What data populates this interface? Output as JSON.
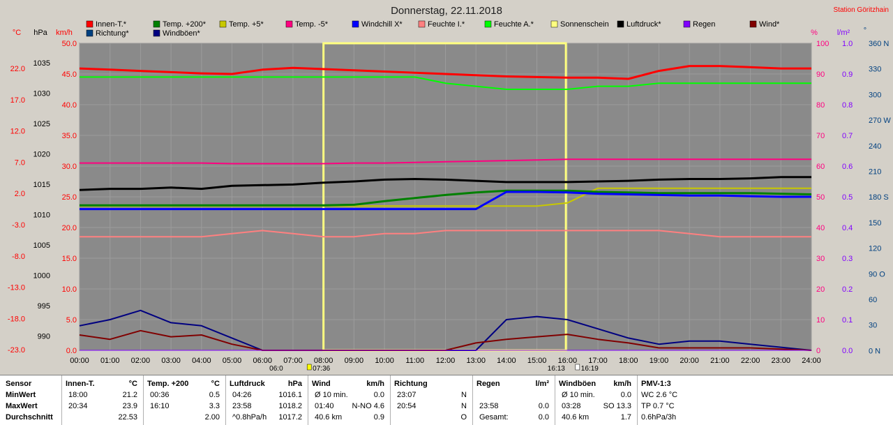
{
  "title": "Donnerstag, 22.11.2018",
  "station": "Station Göritzhain",
  "legend": [
    {
      "name": "Innen-T.*",
      "color": "#ff0000"
    },
    {
      "name": "Temp. +200*",
      "color": "#008000"
    },
    {
      "name": "Temp. +5*",
      "color": "#c8c800"
    },
    {
      "name": "Temp. -5*",
      "color": "#ff0080"
    },
    {
      "name": "Windchill X*",
      "color": "#0000ff"
    },
    {
      "name": "Feuchte I.*",
      "color": "#ff8080"
    },
    {
      "name": "Feuchte A.*",
      "color": "#00ff00"
    },
    {
      "name": "Sonnenschein",
      "color": "#ffff80"
    },
    {
      "name": "Luftdruck*",
      "color": "#000000"
    },
    {
      "name": "Regen",
      "color": "#8000ff"
    },
    {
      "name": "Wind*",
      "color": "#800000"
    },
    {
      "name": "Richtung*",
      "color": "#004080"
    },
    {
      "name": "Windböen*",
      "color": "#000080"
    }
  ],
  "axes": {
    "celsius": {
      "unit": "°C",
      "color": "#ff0000",
      "ticks": [
        "22.0",
        "17.0",
        "12.0",
        "7.0",
        "2.0",
        "-3.0",
        "-8.0",
        "-13.0",
        "-18.0",
        "-23.0"
      ]
    },
    "hpa": {
      "unit": "hPa",
      "color": "#000000",
      "ticks": [
        "1035",
        "1030",
        "1025",
        "1020",
        "1015",
        "1010",
        "1005",
        "1000",
        "995",
        "990"
      ]
    },
    "kmh": {
      "unit": "km/h",
      "color": "#ff0000",
      "ticks": [
        "50.0",
        "45.0",
        "40.0",
        "35.0",
        "30.0",
        "25.0",
        "20.0",
        "15.0",
        "10.0",
        "5.0",
        "0.0"
      ]
    },
    "percent": {
      "unit": "%",
      "color": "#ff0080",
      "ticks": [
        "100",
        "90",
        "80",
        "70",
        "60",
        "50",
        "40",
        "30",
        "20",
        "10",
        "0"
      ]
    },
    "rain": {
      "unit": "l/m²",
      "color": "#8000ff",
      "ticks": [
        "1.0",
        "0.9",
        "0.8",
        "0.7",
        "0.6",
        "0.5",
        "0.4",
        "0.3",
        "0.2",
        "0.1",
        "0.0"
      ]
    },
    "direction": {
      "unit": "°",
      "color": "#004080",
      "ticks": [
        "360 N",
        "330",
        "300",
        "270 W",
        "240",
        "210",
        "180 S",
        "150",
        "120",
        "90 O",
        "60",
        "30",
        "0 N"
      ]
    },
    "x": {
      "ticks": [
        "00:00",
        "01:00",
        "02:00",
        "03:00",
        "04:00",
        "05:00",
        "06:00",
        "07:00",
        "08:00",
        "09:00",
        "10:00",
        "11:00",
        "12:00",
        "13:00",
        "14:00",
        "15:00",
        "16:00",
        "17:00",
        "18:00",
        "19:00",
        "20:00",
        "21:00",
        "22:00",
        "23:00",
        "24:00"
      ]
    }
  },
  "sun": {
    "rise": "07:36",
    "rise_label": "06:0",
    "set": "16:13",
    "set_label": "16:19"
  },
  "chart_data": {
    "type": "line",
    "title": "Donnerstag, 22.11.2018",
    "x_hours": [
      0,
      1,
      2,
      3,
      4,
      5,
      6,
      7,
      8,
      9,
      10,
      11,
      12,
      13,
      14,
      15,
      16,
      17,
      18,
      19,
      20,
      21,
      22,
      23,
      24
    ],
    "series": [
      {
        "name": "Innen-T.*",
        "axis": "celsius",
        "values": [
          22.9,
          22.7,
          22.5,
          22.3,
          22.1,
          22.0,
          22.7,
          23.0,
          22.8,
          22.6,
          22.4,
          22.2,
          22.0,
          21.8,
          21.6,
          21.5,
          21.4,
          21.4,
          21.2,
          22.5,
          23.3,
          23.3,
          23.1,
          22.9,
          22.9
        ]
      },
      {
        "name": "Feuchte A.*",
        "axis": "percent",
        "values": [
          89,
          89,
          89,
          89,
          89,
          89,
          89,
          89,
          89,
          89,
          89,
          89,
          87,
          86,
          85,
          85,
          85,
          86,
          86,
          87,
          87,
          87,
          87,
          87,
          87
        ]
      },
      {
        "name": "Temp. -5*",
        "axis": "celsius",
        "values": [
          7.5,
          7.5,
          7.5,
          7.5,
          7.5,
          7.4,
          7.4,
          7.4,
          7.4,
          7.5,
          7.5,
          7.6,
          7.7,
          7.8,
          7.9,
          8.0,
          8.1,
          8.1,
          8.1,
          8.1,
          8.1,
          8.1,
          8.1,
          8.1,
          8.1
        ]
      },
      {
        "name": "Luftdruck*",
        "axis": "hpa",
        "values": [
          1016.1,
          1016.3,
          1016.3,
          1016.5,
          1016.3,
          1016.8,
          1016.9,
          1017.0,
          1017.3,
          1017.5,
          1017.8,
          1017.9,
          1017.8,
          1017.6,
          1017.4,
          1017.4,
          1017.4,
          1017.5,
          1017.6,
          1017.8,
          1017.9,
          1017.9,
          1018.0,
          1018.2,
          1018.2
        ]
      },
      {
        "name": "Temp. +5*",
        "axis": "celsius",
        "values": [
          0.5,
          0.5,
          0.5,
          0.5,
          0.5,
          0.5,
          0.5,
          0.5,
          0.5,
          0.5,
          0.5,
          0.5,
          0.5,
          0.5,
          0.5,
          0.5,
          1.0,
          3.4,
          3.4,
          3.4,
          3.4,
          3.4,
          3.4,
          3.4,
          3.4
        ]
      },
      {
        "name": "Temp. +200*",
        "axis": "celsius",
        "values": [
          0.6,
          0.6,
          0.6,
          0.6,
          0.6,
          0.6,
          0.6,
          0.6,
          0.6,
          0.7,
          1.3,
          1.8,
          2.3,
          2.7,
          3.0,
          3.0,
          3.0,
          2.8,
          2.7,
          2.6,
          2.6,
          2.6,
          2.6,
          2.5,
          2.4
        ]
      },
      {
        "name": "Windchill X*",
        "axis": "celsius",
        "values": [
          0.0,
          0.0,
          0.0,
          0.0,
          0.0,
          0.0,
          0.0,
          0.0,
          0.0,
          0.0,
          0.0,
          0.0,
          0.0,
          0.0,
          2.8,
          2.8,
          2.7,
          2.5,
          2.4,
          2.3,
          2.2,
          2.2,
          2.1,
          2.0,
          2.0
        ]
      },
      {
        "name": "Feuchte I.*",
        "axis": "percent",
        "values": [
          37,
          37,
          37,
          37,
          37,
          38,
          39,
          38,
          37,
          37,
          38,
          38,
          39,
          39,
          39,
          39,
          39,
          39,
          39,
          39,
          38,
          37,
          37,
          37,
          37
        ]
      },
      {
        "name": "Windböen*",
        "axis": "kmh",
        "values": [
          4.0,
          5.0,
          6.5,
          4.5,
          4.0,
          2.0,
          0,
          0,
          0,
          0,
          0,
          0,
          0,
          0,
          5.0,
          5.5,
          5.0,
          3.5,
          2.0,
          1.0,
          1.5,
          1.5,
          1.0,
          0.5,
          0
        ]
      },
      {
        "name": "Wind*",
        "axis": "kmh",
        "values": [
          2.5,
          1.8,
          3.2,
          2.2,
          2.5,
          1.0,
          0,
          0,
          0,
          0,
          0,
          0,
          0,
          1.2,
          1.8,
          2.2,
          2.6,
          1.8,
          1.2,
          0.4,
          0.4,
          0.4,
          0.4,
          0.2,
          0
        ]
      },
      {
        "name": "Regen",
        "axis": "rain",
        "values": [
          0,
          0,
          0,
          0,
          0,
          0,
          0,
          0,
          0,
          0,
          0,
          0,
          0,
          0,
          0,
          0,
          0,
          0,
          0,
          0,
          0,
          0,
          0,
          0,
          0
        ]
      }
    ]
  },
  "stats": {
    "sensor": {
      "header": "Sensor",
      "rows": [
        "MinWert",
        "MaxWert",
        "Durchschnitt"
      ]
    },
    "innen": {
      "header": "Innen-T.",
      "unit": "°C",
      "rows": [
        [
          "18:00",
          "21.2"
        ],
        [
          "20:34",
          "23.9"
        ],
        [
          "",
          "22.53"
        ]
      ]
    },
    "temp200": {
      "header": "Temp. +200",
      "unit": "°C",
      "rows": [
        [
          "00:36",
          "0.5"
        ],
        [
          "16:10",
          "3.3"
        ],
        [
          "",
          "2.00"
        ]
      ]
    },
    "luftdruck": {
      "header": "Luftdruck",
      "unit": "hPa",
      "rows": [
        [
          "04:26",
          "1016.1"
        ],
        [
          "23:58",
          "1018.2"
        ],
        [
          "^0.8hPa/h",
          "1017.2"
        ]
      ]
    },
    "wind": {
      "header": "Wind",
      "unit": "km/h",
      "rows": [
        [
          "Ø 10 min.",
          "0.0"
        ],
        [
          "01:40",
          "N-NO 4.6"
        ],
        [
          "40.6 km",
          "0.9"
        ]
      ]
    },
    "richtung": {
      "header": "Richtung",
      "unit": "",
      "rows": [
        [
          "23:07",
          "N"
        ],
        [
          "20:54",
          "N"
        ],
        [
          "",
          "O"
        ]
      ]
    },
    "regen": {
      "header": "Regen",
      "unit": "l/m²",
      "rows": [
        [
          "",
          ""
        ],
        [
          "23:58",
          "0.0"
        ],
        [
          "Gesamt:",
          "0.0"
        ]
      ]
    },
    "boeen": {
      "header": "Windböen",
      "unit": "km/h",
      "rows": [
        [
          "Ø 10 min.",
          "0.0"
        ],
        [
          "03:28",
          "SO 13.3"
        ],
        [
          "40.6 km",
          "1.7"
        ]
      ]
    },
    "pmv": {
      "header": "PMV-1:3",
      "rows": [
        "WC 2.6 °C",
        "TP 0.7 °C",
        "0.6hPa/3h"
      ]
    }
  }
}
